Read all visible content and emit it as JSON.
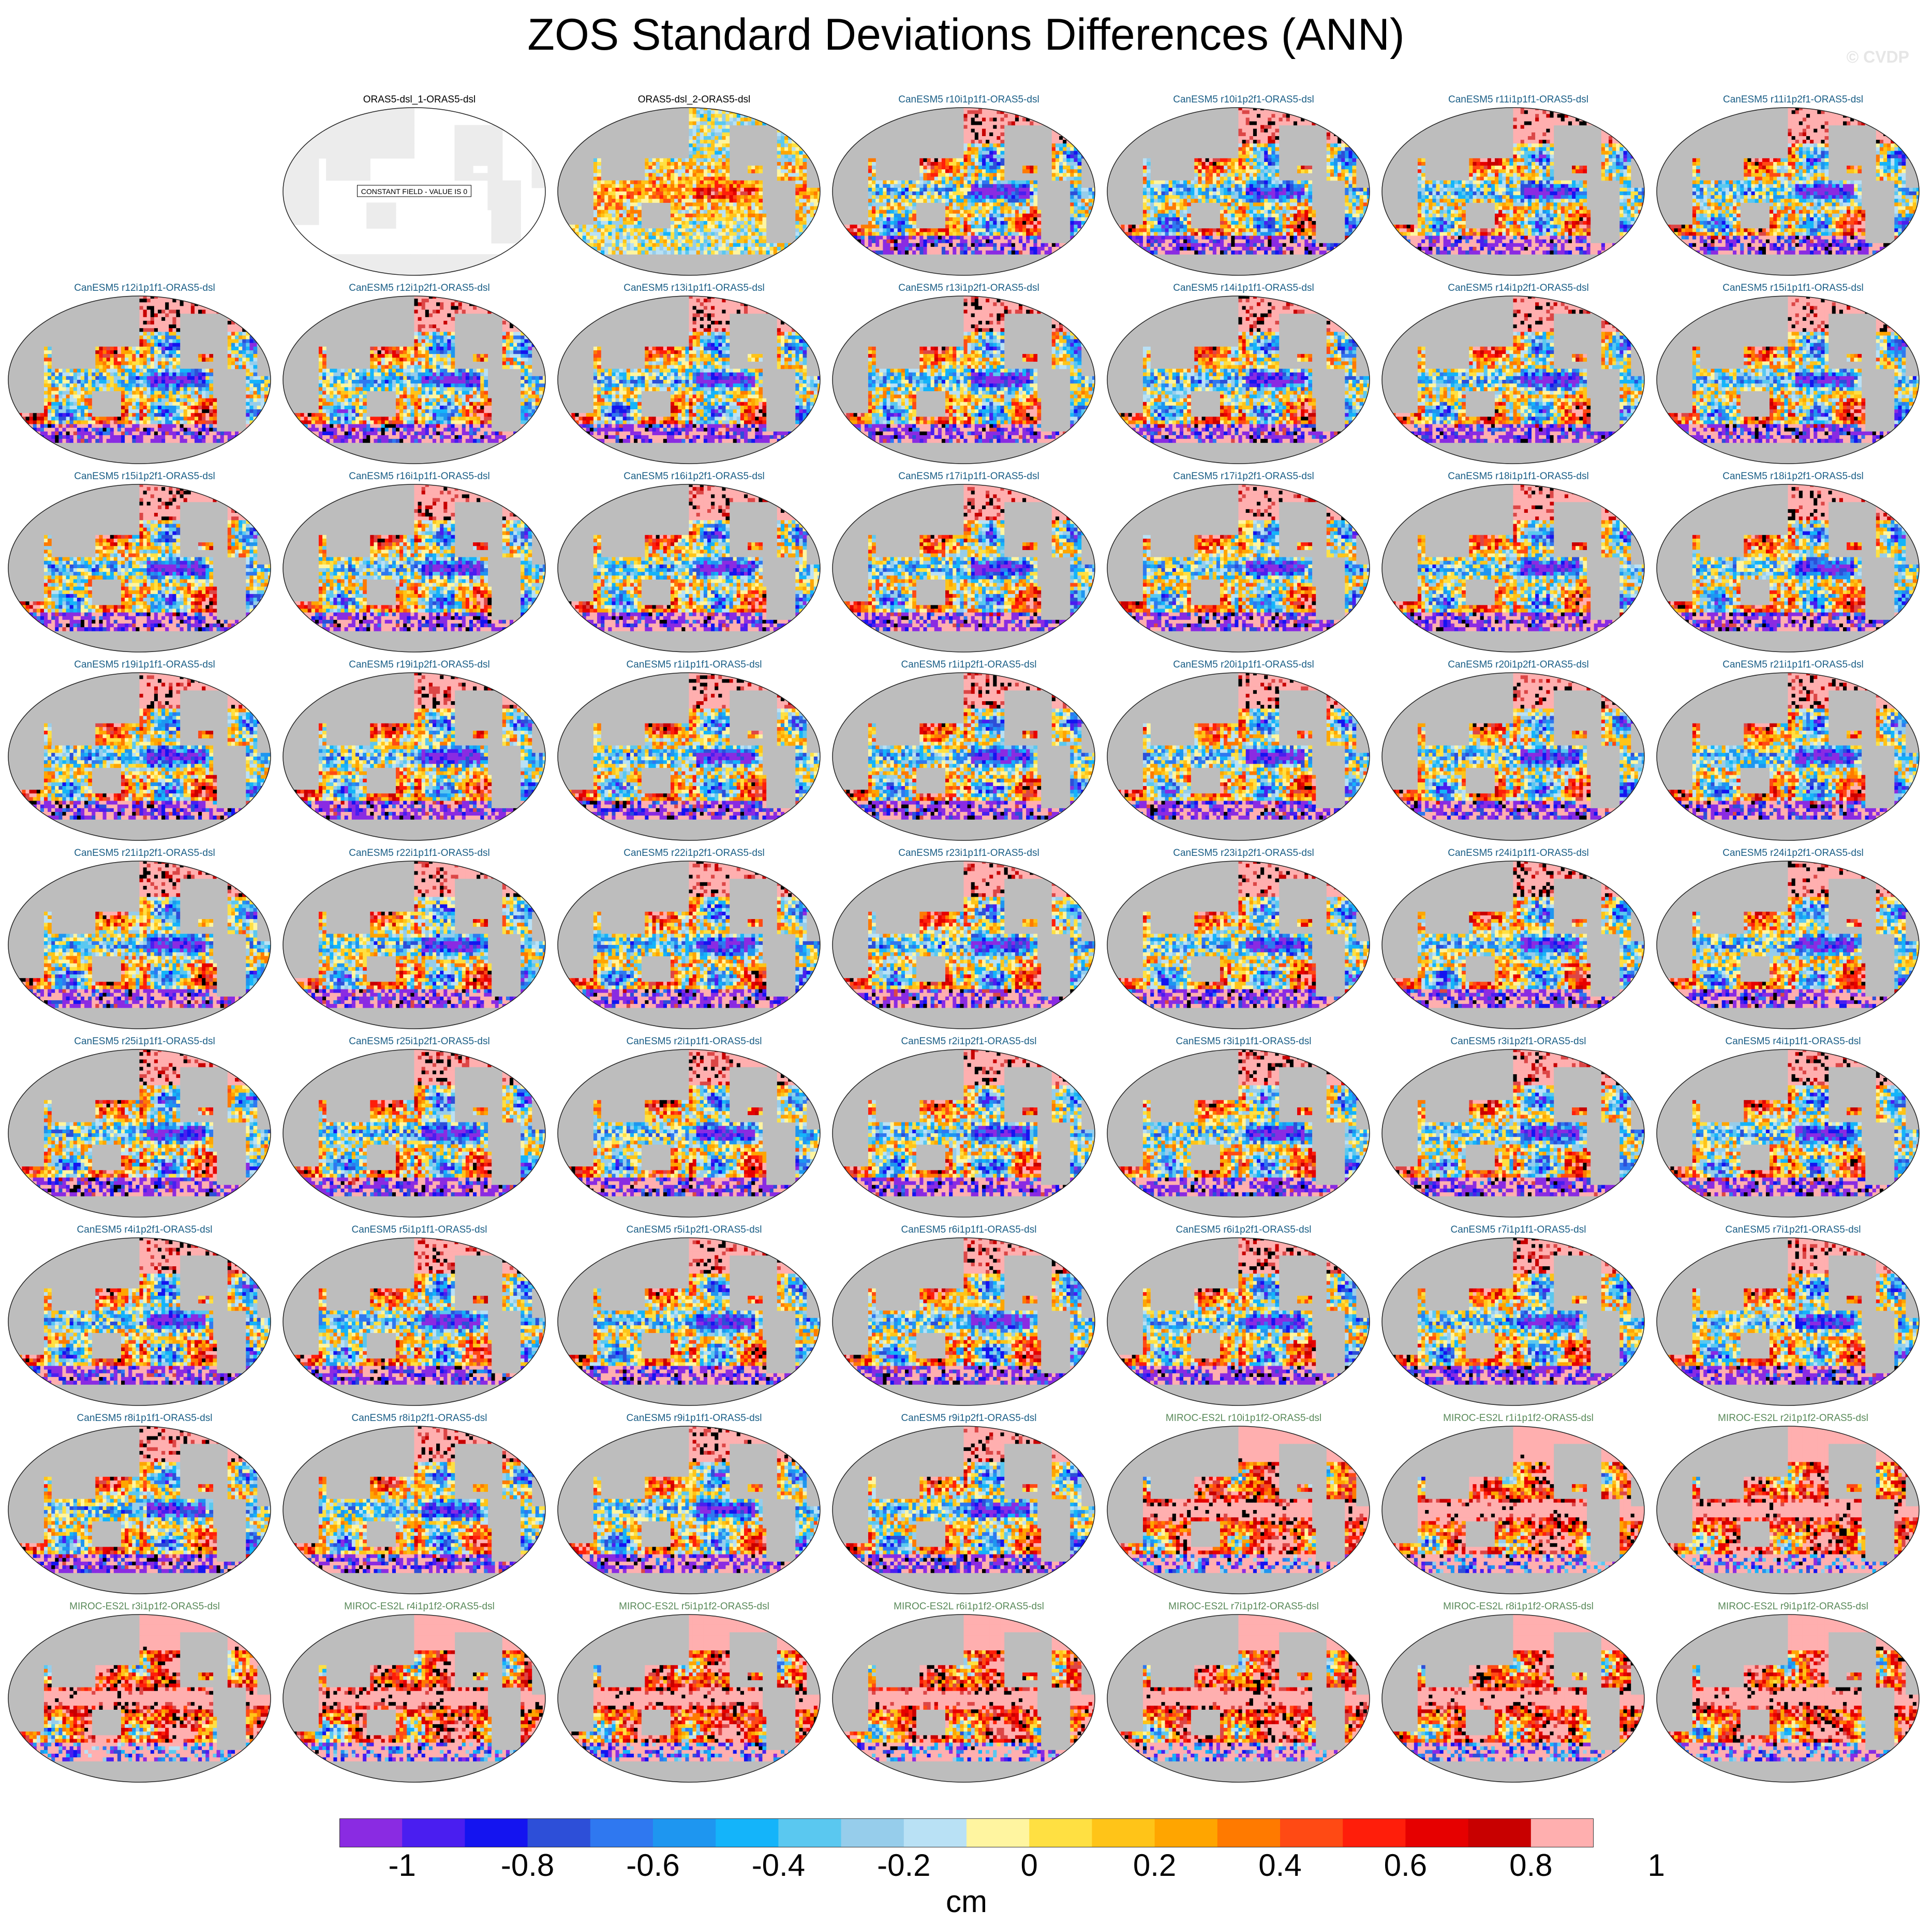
{
  "figure": {
    "title": "ZOS Standard Deviations Differences (ANN)",
    "credit": "© CVDP"
  },
  "colors": {
    "ocean_grey": "#bdbdbd",
    "canesm_title": "#1a5e86",
    "miroc_title": "#5a8a5a",
    "obs_title": "#000000",
    "palette": [
      "#8a2be2",
      "#4a1ef0",
      "#1414f0",
      "#2d4fd8",
      "#2f78f0",
      "#1e96f0",
      "#14b4fa",
      "#5ac8f0",
      "#96cdeb",
      "#b9e1f5",
      "#fff5a0",
      "#ffe042",
      "#ffc418",
      "#ffa500",
      "#ff7a00",
      "#ff4a14",
      "#ff1e0a",
      "#e60000",
      "#c80000",
      "#dc4646",
      "#ffafaf"
    ]
  },
  "chart_data": {
    "type": "heatmap",
    "projection": "Robinson (Pacific-centered)",
    "variable": "ZOS",
    "season": "ANN",
    "units": "cm",
    "colorbar": {
      "levels": [
        -1.1,
        -1,
        -0.9,
        -0.8,
        -0.7,
        -0.6,
        -0.5,
        -0.4,
        -0.3,
        -0.2,
        -0.1,
        0,
        0.1,
        0.2,
        0.3,
        0.4,
        0.5,
        0.6,
        0.7,
        0.8,
        0.9,
        1
      ],
      "tick_labels": [
        "-1",
        "-0.8",
        "-0.6",
        "-0.4",
        "-0.2",
        "0",
        "0.2",
        "0.4",
        "0.6",
        "0.8",
        "1"
      ],
      "tick_values": [
        -1,
        -0.8,
        -0.6,
        -0.4,
        -0.2,
        0,
        0.2,
        0.4,
        0.6,
        0.8,
        1
      ]
    },
    "panels": [
      {
        "name": "ORAS5-dsl_1-ORAS5-dsl",
        "group": "obs",
        "note": "CONSTANT FIELD - VALUE IS 0"
      },
      {
        "name": "ORAS5-dsl_2-ORAS5-dsl",
        "group": "obs2"
      },
      {
        "name": "CanESM5 r10i1p1f1-ORAS5-dsl",
        "group": "canesm"
      },
      {
        "name": "CanESM5 r10i1p2f1-ORAS5-dsl",
        "group": "canesm"
      },
      {
        "name": "CanESM5 r11i1p1f1-ORAS5-dsl",
        "group": "canesm"
      },
      {
        "name": "CanESM5 r11i1p2f1-ORAS5-dsl",
        "group": "canesm"
      },
      {
        "name": "CanESM5 r12i1p1f1-ORAS5-dsl",
        "group": "canesm"
      },
      {
        "name": "CanESM5 r12i1p2f1-ORAS5-dsl",
        "group": "canesm"
      },
      {
        "name": "CanESM5 r13i1p1f1-ORAS5-dsl",
        "group": "canesm"
      },
      {
        "name": "CanESM5 r13i1p2f1-ORAS5-dsl",
        "group": "canesm"
      },
      {
        "name": "CanESM5 r14i1p1f1-ORAS5-dsl",
        "group": "canesm"
      },
      {
        "name": "CanESM5 r14i1p2f1-ORAS5-dsl",
        "group": "canesm"
      },
      {
        "name": "CanESM5 r15i1p1f1-ORAS5-dsl",
        "group": "canesm"
      },
      {
        "name": "CanESM5 r15i1p2f1-ORAS5-dsl",
        "group": "canesm"
      },
      {
        "name": "CanESM5 r16i1p1f1-ORAS5-dsl",
        "group": "canesm"
      },
      {
        "name": "CanESM5 r16i1p2f1-ORAS5-dsl",
        "group": "canesm"
      },
      {
        "name": "CanESM5 r17i1p1f1-ORAS5-dsl",
        "group": "canesm"
      },
      {
        "name": "CanESM5 r17i1p2f1-ORAS5-dsl",
        "group": "canesm"
      },
      {
        "name": "CanESM5 r18i1p1f1-ORAS5-dsl",
        "group": "canesm"
      },
      {
        "name": "CanESM5 r18i1p2f1-ORAS5-dsl",
        "group": "canesm"
      },
      {
        "name": "CanESM5 r19i1p1f1-ORAS5-dsl",
        "group": "canesm"
      },
      {
        "name": "CanESM5 r19i1p2f1-ORAS5-dsl",
        "group": "canesm"
      },
      {
        "name": "CanESM5 r1i1p1f1-ORAS5-dsl",
        "group": "canesm"
      },
      {
        "name": "CanESM5 r1i1p2f1-ORAS5-dsl",
        "group": "canesm"
      },
      {
        "name": "CanESM5 r20i1p1f1-ORAS5-dsl",
        "group": "canesm"
      },
      {
        "name": "CanESM5 r20i1p2f1-ORAS5-dsl",
        "group": "canesm"
      },
      {
        "name": "CanESM5 r21i1p1f1-ORAS5-dsl",
        "group": "canesm"
      },
      {
        "name": "CanESM5 r21i1p2f1-ORAS5-dsl",
        "group": "canesm"
      },
      {
        "name": "CanESM5 r22i1p1f1-ORAS5-dsl",
        "group": "canesm"
      },
      {
        "name": "CanESM5 r22i1p2f1-ORAS5-dsl",
        "group": "canesm"
      },
      {
        "name": "CanESM5 r23i1p1f1-ORAS5-dsl",
        "group": "canesm"
      },
      {
        "name": "CanESM5 r23i1p2f1-ORAS5-dsl",
        "group": "canesm"
      },
      {
        "name": "CanESM5 r24i1p1f1-ORAS5-dsl",
        "group": "canesm"
      },
      {
        "name": "CanESM5 r24i1p2f1-ORAS5-dsl",
        "group": "canesm"
      },
      {
        "name": "CanESM5 r25i1p1f1-ORAS5-dsl",
        "group": "canesm"
      },
      {
        "name": "CanESM5 r25i1p2f1-ORAS5-dsl",
        "group": "canesm"
      },
      {
        "name": "CanESM5 r2i1p1f1-ORAS5-dsl",
        "group": "canesm"
      },
      {
        "name": "CanESM5 r2i1p2f1-ORAS5-dsl",
        "group": "canesm"
      },
      {
        "name": "CanESM5 r3i1p1f1-ORAS5-dsl",
        "group": "canesm"
      },
      {
        "name": "CanESM5 r3i1p2f1-ORAS5-dsl",
        "group": "canesm"
      },
      {
        "name": "CanESM5 r4i1p1f1-ORAS5-dsl",
        "group": "canesm"
      },
      {
        "name": "CanESM5 r4i1p2f1-ORAS5-dsl",
        "group": "canesm"
      },
      {
        "name": "CanESM5 r5i1p1f1-ORAS5-dsl",
        "group": "canesm"
      },
      {
        "name": "CanESM5 r5i1p2f1-ORAS5-dsl",
        "group": "canesm"
      },
      {
        "name": "CanESM5 r6i1p1f1-ORAS5-dsl",
        "group": "canesm"
      },
      {
        "name": "CanESM5 r6i1p2f1-ORAS5-dsl",
        "group": "canesm"
      },
      {
        "name": "CanESM5 r7i1p1f1-ORAS5-dsl",
        "group": "canesm"
      },
      {
        "name": "CanESM5 r7i1p2f1-ORAS5-dsl",
        "group": "canesm"
      },
      {
        "name": "CanESM5 r8i1p1f1-ORAS5-dsl",
        "group": "canesm"
      },
      {
        "name": "CanESM5 r8i1p2f1-ORAS5-dsl",
        "group": "canesm"
      },
      {
        "name": "CanESM5 r9i1p1f1-ORAS5-dsl",
        "group": "canesm"
      },
      {
        "name": "CanESM5 r9i1p2f1-ORAS5-dsl",
        "group": "canesm"
      },
      {
        "name": "MIROC-ES2L r10i1p1f2-ORAS5-dsl",
        "group": "miroc"
      },
      {
        "name": "MIROC-ES2L r1i1p1f2-ORAS5-dsl",
        "group": "miroc"
      },
      {
        "name": "MIROC-ES2L r2i1p1f2-ORAS5-dsl",
        "group": "miroc"
      },
      {
        "name": "MIROC-ES2L r3i1p1f2-ORAS5-dsl",
        "group": "miroc"
      },
      {
        "name": "MIROC-ES2L r4i1p1f2-ORAS5-dsl",
        "group": "miroc"
      },
      {
        "name": "MIROC-ES2L r5i1p1f2-ORAS5-dsl",
        "group": "miroc"
      },
      {
        "name": "MIROC-ES2L r6i1p1f2-ORAS5-dsl",
        "group": "miroc"
      },
      {
        "name": "MIROC-ES2L r7i1p1f2-ORAS5-dsl",
        "group": "miroc"
      },
      {
        "name": "MIROC-ES2L r8i1p1f2-ORAS5-dsl",
        "group": "miroc"
      },
      {
        "name": "MIROC-ES2L r9i1p1f2-ORAS5-dsl",
        "group": "miroc"
      }
    ]
  }
}
